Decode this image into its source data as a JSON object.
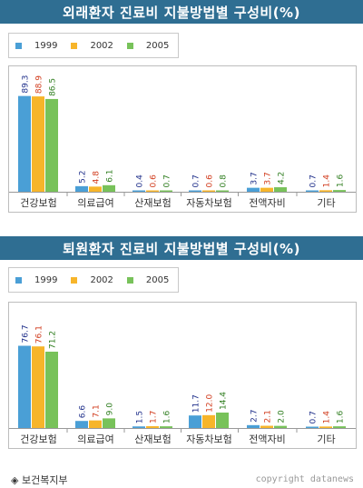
{
  "chart_data": [
    {
      "type": "bar",
      "title": "외래환자 진료비 지불방법별 구성비(%)",
      "categories": [
        "건강보험",
        "의료급여",
        "산재보험",
        "자동차보험",
        "전액자비",
        "기타"
      ],
      "series": [
        {
          "name": "1999",
          "values": [
            89.3,
            5.2,
            0.4,
            0.7,
            3.7,
            0.7
          ]
        },
        {
          "name": "2002",
          "values": [
            88.9,
            4.8,
            0.6,
            0.6,
            3.7,
            1.4
          ]
        },
        {
          "name": "2005",
          "values": [
            86.5,
            6.1,
            0.7,
            0.8,
            4.2,
            1.6
          ]
        }
      ],
      "value_labels": [
        [
          "89.3",
          "5.2",
          "0.4",
          "0.7",
          "3.7",
          "0.7"
        ],
        [
          "88.9",
          "4.8",
          "0.6",
          "0.6",
          "3.7",
          "1.4"
        ],
        [
          "86.5",
          "6.1",
          "0.7",
          "0.8",
          "4.2",
          "1.6"
        ]
      ],
      "ylim": [
        0,
        100
      ]
    },
    {
      "type": "bar",
      "title": "퇴원환자 진료비 지불방법별 구성비(%)",
      "categories": [
        "건강보험",
        "의료급여",
        "산재보험",
        "자동차보험",
        "전액자비",
        "기타"
      ],
      "series": [
        {
          "name": "1999",
          "values": [
            76.7,
            6.6,
            1.5,
            11.7,
            2.7,
            0.7
          ]
        },
        {
          "name": "2002",
          "values": [
            76.1,
            7.1,
            1.7,
            12.0,
            2.1,
            1.4
          ]
        },
        {
          "name": "2005",
          "values": [
            71.2,
            9.0,
            1.6,
            14.4,
            2.0,
            1.6
          ]
        }
      ],
      "value_labels": [
        [
          "76.7",
          "6.6",
          "1.5",
          "11.7",
          "2.7",
          "0.7"
        ],
        [
          "76.1",
          "7.1",
          "1.7",
          "12.0",
          "2.1",
          "1.4"
        ],
        [
          "71.2",
          "9.0",
          "1.6",
          "14.4",
          "2.0",
          "1.6"
        ]
      ],
      "ylim": [
        0,
        100
      ]
    }
  ],
  "colors": {
    "series": [
      "#4a9fd6",
      "#f7b52a",
      "#78c25a"
    ],
    "value_labels": [
      "#1f2f8a",
      "#d13b1c",
      "#2e7d1e"
    ],
    "title_bar": "#2f6e92"
  },
  "footer": {
    "source": "◈ 보건복지부",
    "credit": "copyright datanews"
  }
}
